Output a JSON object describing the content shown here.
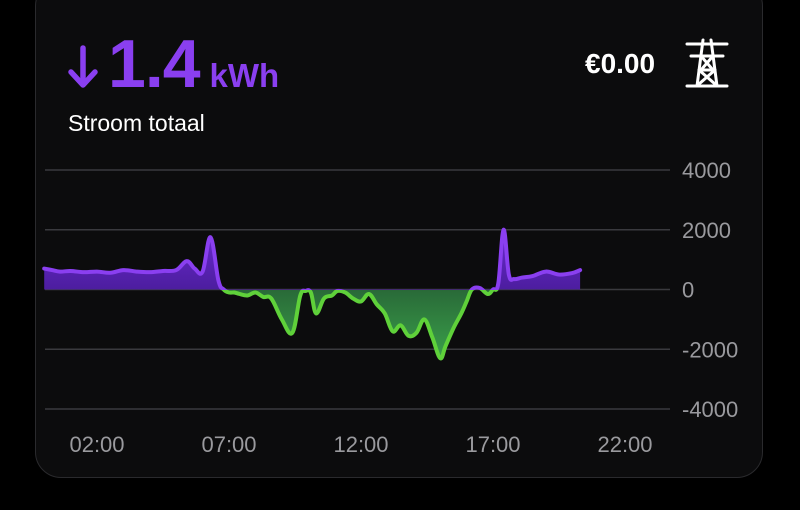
{
  "header": {
    "direction_icon": "arrow-down-icon",
    "value": "1.4",
    "unit": "kWh",
    "title": "Stroom totaal",
    "cost": "€0.00",
    "grid_icon": "power-pylon-icon"
  },
  "colors": {
    "import": "#8a3ff0",
    "import_fill_top": "#5a20b8",
    "import_fill_bottom": "#2a0f66",
    "export": "#5fd13a",
    "export_fill_top": "#1a4a2a",
    "export_fill_bottom": "#3aa04a",
    "grid": "#3a3a3e",
    "text": "#ffffff",
    "muted": "#9a9a9e"
  },
  "chart_data": {
    "type": "area",
    "ylim": [
      -4000,
      4000
    ],
    "y_ticks": [
      4000,
      2000,
      0,
      -2000,
      -4000
    ],
    "y_tick_labels": [
      "4000",
      "2000",
      "0",
      "-2000",
      "-4000"
    ],
    "x_tick_labels": [
      "02:00",
      "07:00",
      "12:00",
      "17:00",
      "22:00"
    ],
    "x_tick_hours": [
      2,
      7,
      12,
      17,
      22
    ],
    "grid": true,
    "series": [
      {
        "x_hours": [
          0.0,
          0.3,
          0.6,
          1.0,
          1.5,
          2.0,
          2.5,
          3.0,
          3.5,
          4.0,
          4.5,
          5.0,
          5.4,
          5.7,
          6.0,
          6.3,
          6.6,
          6.8,
          7.0,
          7.2,
          7.4,
          7.7,
          8.0,
          8.3,
          8.6,
          9.0,
          9.4,
          9.7,
          9.9,
          10.1,
          10.3,
          10.6,
          10.9,
          11.1,
          11.4,
          11.7,
          12.0,
          12.3,
          12.6,
          12.9,
          13.2,
          13.5,
          13.8,
          14.1,
          14.4,
          14.7,
          15.0,
          15.2,
          15.5,
          15.8,
          16.0,
          16.2,
          16.5,
          16.8,
          17.0,
          17.2,
          17.4,
          17.6,
          17.8,
          18.1,
          18.5,
          19.0,
          19.5,
          20.0,
          20.3
        ],
        "values": [
          700,
          650,
          600,
          620,
          580,
          600,
          560,
          650,
          600,
          580,
          620,
          650,
          950,
          700,
          600,
          1750,
          300,
          0,
          -100,
          -100,
          -150,
          -200,
          -100,
          -250,
          -300,
          -1000,
          -1450,
          -200,
          -50,
          -100,
          -800,
          -300,
          -200,
          -50,
          -100,
          -300,
          -400,
          -150,
          -500,
          -800,
          -1400,
          -1200,
          -1550,
          -1450,
          -1000,
          -1600,
          -2300,
          -1900,
          -1300,
          -800,
          -400,
          0,
          50,
          -150,
          0,
          200,
          2000,
          500,
          350,
          400,
          450,
          600,
          500,
          550,
          650
        ]
      }
    ]
  }
}
